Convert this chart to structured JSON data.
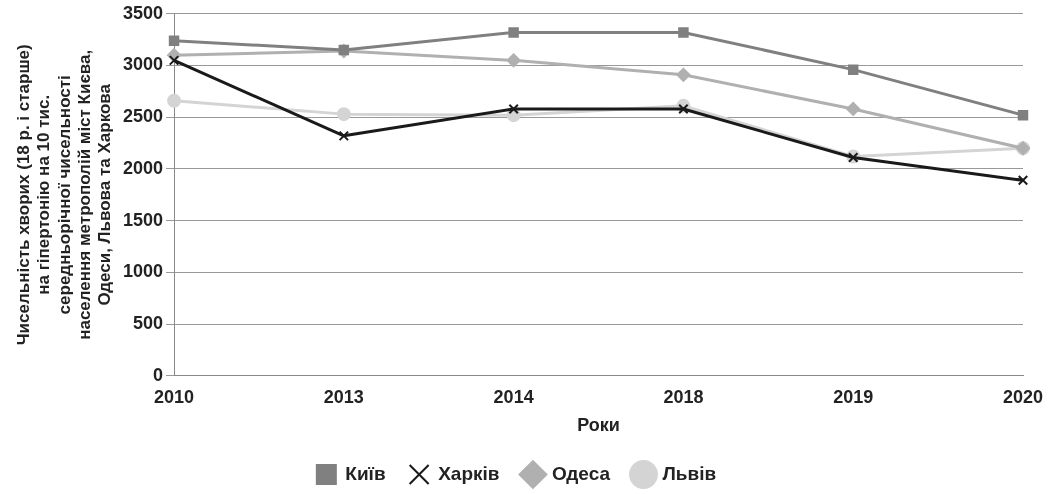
{
  "chart_data": {
    "type": "line",
    "xlabel": "Роки",
    "ylabel": "Чисельність хворих (18 р. і старше)\nна гіпертонію на 10 тис.\nсередньорічної чисельності\nнаселення метрополій міст Києва,\nОдеси, Львова та Харкова",
    "categories": [
      "2010",
      "2013",
      "2014",
      "2018",
      "2019",
      "2020"
    ],
    "series": [
      {
        "name": "Київ",
        "color": "#808080",
        "marker": "square",
        "values": [
          3240,
          3150,
          3320,
          3320,
          2960,
          2520
        ]
      },
      {
        "name": "Харків",
        "color": "#1a1a1a",
        "marker": "cross",
        "values": [
          3050,
          2320,
          2580,
          2580,
          2110,
          1890
        ]
      },
      {
        "name": "Одеса",
        "color": "#b0b0b0",
        "marker": "diamond",
        "values": [
          3100,
          3140,
          3050,
          2910,
          2580,
          2200
        ]
      },
      {
        "name": "Львів",
        "color": "#d4d4d4",
        "marker": "circle",
        "values": [
          2660,
          2530,
          2520,
          2610,
          2120,
          2200
        ]
      }
    ],
    "ylim": [
      0,
      3500
    ],
    "yticks": [
      0,
      500,
      1000,
      1500,
      2000,
      2500,
      3000,
      3500
    ],
    "grid": "y",
    "legend": "bottom",
    "line_style": "solid"
  }
}
